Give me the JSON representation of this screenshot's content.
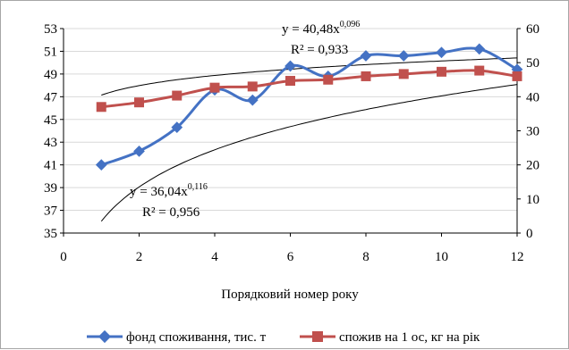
{
  "chart_data": {
    "type": "line",
    "xlabel": "Порядковий номер року",
    "x_ticks": [
      0,
      2,
      4,
      6,
      8,
      10,
      12
    ],
    "xlim": [
      0,
      12
    ],
    "y_left": {
      "lim": [
        35,
        53
      ],
      "ticks": [
        35,
        37,
        39,
        41,
        43,
        45,
        47,
        49,
        51,
        53
      ]
    },
    "y_right": {
      "lim": [
        0,
        60
      ],
      "ticks": [
        0,
        10,
        20,
        30,
        40,
        50,
        60
      ]
    },
    "grid": {
      "horizontal": true,
      "vertical": false
    },
    "legend_position": "bottom",
    "series": [
      {
        "name": "фонд споживання, тис. т",
        "axis": "right",
        "color": "#4472c4",
        "marker": "diamond",
        "x": [
          1,
          2,
          3,
          4,
          5,
          6,
          7,
          8,
          9,
          10,
          11,
          12
        ],
        "values": [
          20,
          24,
          31,
          42,
          39,
          49,
          46,
          52,
          52,
          53,
          54,
          48
        ]
      },
      {
        "name": "спожив на 1 ос, кг на рік",
        "axis": "left",
        "color": "#c0504d",
        "marker": "square",
        "x": [
          1,
          2,
          3,
          4,
          5,
          6,
          7,
          8,
          9,
          10,
          11,
          12
        ],
        "values": [
          46.1,
          46.5,
          47.1,
          47.8,
          47.9,
          48.4,
          48.5,
          48.8,
          49.0,
          49.2,
          49.3,
          48.8
        ]
      }
    ],
    "trendlines": [
      {
        "series": "фонд споживання, тис. т",
        "axis": "right",
        "a": 40.48,
        "b": 0.096
      },
      {
        "series": "спожив на 1 ос, кг на рік",
        "axis": "left",
        "a": 36.04,
        "b": 0.116
      }
    ],
    "annotations": [
      {
        "equation_prefix": "y = 40,48x",
        "equation_exp": "0,096",
        "r2": "R² = 0,933"
      },
      {
        "equation_prefix": "y = 36,04x",
        "equation_exp": "0,116",
        "r2": "R² = 0,956"
      }
    ]
  }
}
